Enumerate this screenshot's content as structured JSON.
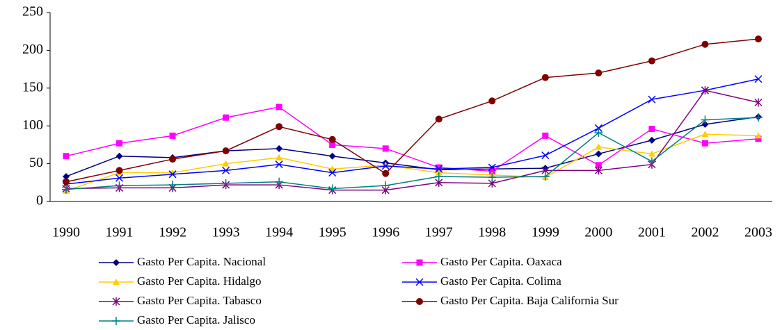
{
  "chart_data": {
    "type": "line",
    "categories": [
      "1990",
      "1991",
      "1992",
      "1993",
      "1994",
      "1995",
      "1996",
      "1997",
      "1998",
      "1999",
      "2000",
      "2001",
      "2002",
      "2003"
    ],
    "ylim": [
      0,
      250
    ],
    "yticks": [
      0,
      50,
      100,
      150,
      200,
      250
    ],
    "grid": false,
    "legend": "bottom",
    "series": [
      {
        "name": "Gasto Per Capita. Nacional",
        "color": "#000080",
        "marker": "diamond",
        "values": [
          33,
          60,
          58,
          67,
          70,
          60,
          51,
          42,
          43,
          44,
          63,
          81,
          102,
          112
        ]
      },
      {
        "name": "Gasto Per Capita. Oaxaca",
        "color": "#ff00ff",
        "marker": "square",
        "values": [
          60,
          77,
          87,
          111,
          125,
          75,
          70,
          45,
          40,
          87,
          48,
          96,
          77,
          83
        ]
      },
      {
        "name": "Gasto Per Capita. Hidalgo",
        "color": "#ffcc00",
        "marker": "triangle",
        "values": [
          14,
          38,
          38,
          50,
          58,
          43,
          48,
          38,
          35,
          32,
          72,
          63,
          89,
          87
        ]
      },
      {
        "name": "Gasto Per Capita. Colima",
        "color": "#0000ff",
        "marker": "x",
        "values": [
          23,
          31,
          36,
          41,
          49,
          38,
          47,
          43,
          45,
          61,
          97,
          135,
          147,
          162
        ]
      },
      {
        "name": "Gasto Per Capita. Tabasco",
        "color": "#800080",
        "marker": "asterisk",
        "values": [
          17,
          18,
          18,
          22,
          22,
          15,
          15,
          25,
          24,
          41,
          41,
          49,
          147,
          131
        ]
      },
      {
        "name": "Gasto Per Capita. Baja California Sur",
        "color": "#800000",
        "marker": "circle",
        "values": [
          26,
          41,
          56,
          67,
          99,
          82,
          37,
          109,
          133,
          164,
          170,
          186,
          208,
          215
        ]
      },
      {
        "name": "Gasto Per Capita. Jalisco",
        "color": "#008080",
        "marker": "plus",
        "values": [
          16,
          21,
          22,
          24,
          26,
          17,
          21,
          33,
          32,
          33,
          91,
          53,
          108,
          111
        ]
      }
    ]
  }
}
